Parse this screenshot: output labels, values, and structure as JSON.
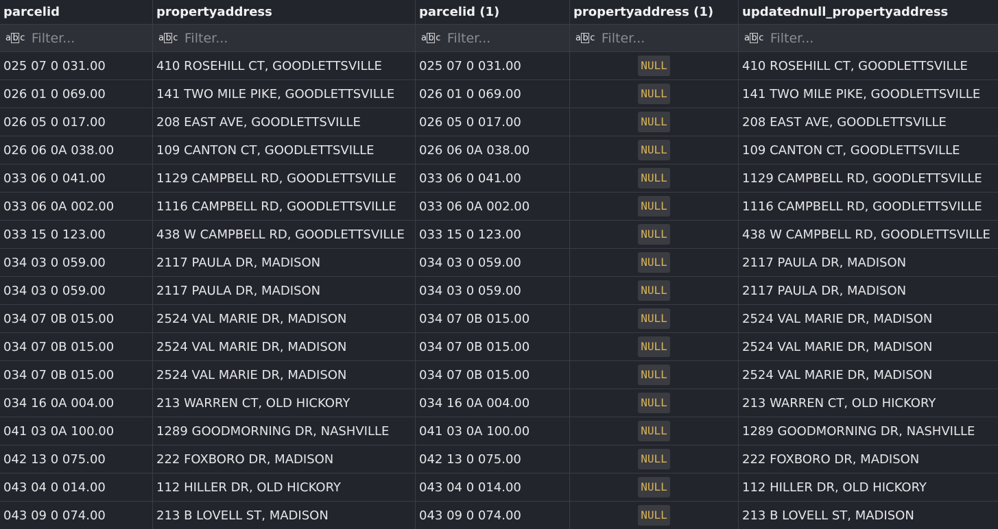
{
  "columns": [
    "parcelid",
    "propertyaddress",
    "parcelid (1)",
    "propertyaddress (1)",
    "updatednull_propertyaddress"
  ],
  "filter_placeholder": "Filter...",
  "filter_icon": "abc-text-type-icon",
  "null_label": "NULL",
  "colors": {
    "background": "#23252c",
    "filter_row": "#2e3038",
    "null_text": "#d9b45a",
    "null_bg": "#3a3c42"
  },
  "rows": [
    [
      "025 07 0 031.00",
      "410 ROSEHILL CT, GOODLETTSVILLE",
      "025 07 0 031.00",
      "NULL",
      "410 ROSEHILL CT, GOODLETTSVILLE"
    ],
    [
      "026 01 0 069.00",
      "141 TWO MILE PIKE, GOODLETTSVILLE",
      "026 01 0 069.00",
      "NULL",
      "141 TWO MILE PIKE, GOODLETTSVILLE"
    ],
    [
      "026 05 0 017.00",
      "208 EAST AVE, GOODLETTSVILLE",
      "026 05 0 017.00",
      "NULL",
      "208 EAST AVE, GOODLETTSVILLE"
    ],
    [
      "026 06 0A 038.00",
      "109 CANTON CT, GOODLETTSVILLE",
      "026 06 0A 038.00",
      "NULL",
      "109 CANTON CT, GOODLETTSVILLE"
    ],
    [
      "033 06 0 041.00",
      "1129 CAMPBELL RD, GOODLETTSVILLE",
      "033 06 0 041.00",
      "NULL",
      "1129 CAMPBELL RD, GOODLETTSVILLE"
    ],
    [
      "033 06 0A 002.00",
      "1116 CAMPBELL RD, GOODLETTSVILLE",
      "033 06 0A 002.00",
      "NULL",
      "1116 CAMPBELL RD, GOODLETTSVILLE"
    ],
    [
      "033 15 0 123.00",
      "438 W CAMPBELL RD, GOODLETTSVILLE",
      "033 15 0 123.00",
      "NULL",
      "438 W CAMPBELL RD, GOODLETTSVILLE"
    ],
    [
      "034 03 0 059.00",
      "2117 PAULA DR, MADISON",
      "034 03 0 059.00",
      "NULL",
      "2117 PAULA DR, MADISON"
    ],
    [
      "034 03 0 059.00",
      "2117 PAULA DR, MADISON",
      "034 03 0 059.00",
      "NULL",
      "2117 PAULA DR, MADISON"
    ],
    [
      "034 07 0B 015.00",
      "2524 VAL MARIE DR, MADISON",
      "034 07 0B 015.00",
      "NULL",
      "2524 VAL MARIE DR, MADISON"
    ],
    [
      "034 07 0B 015.00",
      "2524 VAL MARIE DR, MADISON",
      "034 07 0B 015.00",
      "NULL",
      "2524 VAL MARIE DR, MADISON"
    ],
    [
      "034 07 0B 015.00",
      "2524 VAL MARIE DR, MADISON",
      "034 07 0B 015.00",
      "NULL",
      "2524 VAL MARIE DR, MADISON"
    ],
    [
      "034 16 0A 004.00",
      "213 WARREN CT, OLD HICKORY",
      "034 16 0A 004.00",
      "NULL",
      "213 WARREN CT, OLD HICKORY"
    ],
    [
      "041 03 0A 100.00",
      "1289 GOODMORNING DR, NASHVILLE",
      "041 03 0A 100.00",
      "NULL",
      "1289 GOODMORNING DR, NASHVILLE"
    ],
    [
      "042 13 0 075.00",
      "222 FOXBORO DR, MADISON",
      "042 13 0 075.00",
      "NULL",
      "222 FOXBORO DR, MADISON"
    ],
    [
      "043 04 0 014.00",
      "112 HILLER DR, OLD HICKORY",
      "043 04 0 014.00",
      "NULL",
      "112 HILLER DR, OLD HICKORY"
    ],
    [
      "043 09 0 074.00",
      "213 B LOVELL ST, MADISON",
      "043 09 0 074.00",
      "NULL",
      "213 B LOVELL ST, MADISON"
    ]
  ]
}
